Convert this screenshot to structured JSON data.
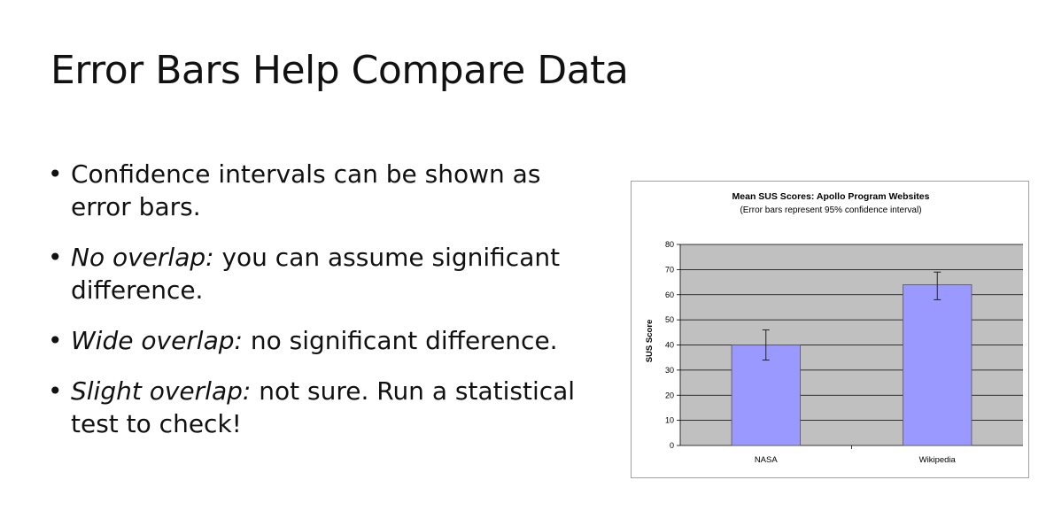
{
  "slide": {
    "title": "Error Bars Help Compare Data",
    "bullets": [
      {
        "emph": "",
        "text": "Confidence intervals can be shown as error bars."
      },
      {
        "emph": "No overlap:",
        "text": " you can assume significant difference."
      },
      {
        "emph": "Wide overlap:",
        "text": " no significant difference."
      },
      {
        "emph": "Slight overlap:",
        "text": " not sure. Run a statistical test to check!"
      }
    ]
  },
  "colors": {
    "bar_fill": "#9999ff",
    "plot_bg": "#c0c0c0",
    "gridline": "#000000"
  },
  "chart_data": {
    "type": "bar",
    "title": "Mean SUS Scores: Apollo Program Websites",
    "subtitle": "(Error bars represent 95% confidence interval)",
    "xlabel": "",
    "ylabel": "SUS Score",
    "categories": [
      "NASA",
      "Wikipedia"
    ],
    "values": [
      40,
      64
    ],
    "error_low": [
      34,
      58
    ],
    "error_high": [
      46,
      69
    ],
    "ylim": [
      0,
      80
    ],
    "yticks": [
      0,
      10,
      20,
      30,
      40,
      50,
      60,
      70,
      80
    ],
    "grid": true,
    "legend": "none"
  }
}
